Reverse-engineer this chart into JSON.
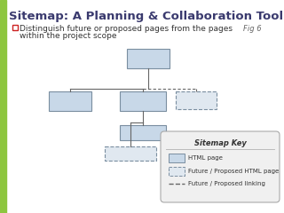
{
  "title": "Sitemap: A Planning & Collaboration Tool:",
  "title_fontsize": 9.5,
  "title_color": "#3a3a6e",
  "bullet_text1": "Distinguish future or proposed pages from the pages",
  "bullet_text2": "within the project scope",
  "bullet_fontsize": 6.5,
  "fig6_text": "Fig 6",
  "fig6_fontsize": 6,
  "fig6_color": "#666666",
  "bg_color": "#ffffff",
  "left_bar_color": "#8dc63f",
  "solid_box_fill": "#c8d8e8",
  "solid_box_edge": "#7a8ea0",
  "dashed_box_fill": "#e0e8f0",
  "dashed_box_edge": "#7a8ea0",
  "line_color": "#666666",
  "key_bg": "#f0f0f0",
  "key_border": "#aaaaaa",
  "key_title": "Sitemap Key",
  "key_title_fontsize": 6,
  "key_label1": "HTML page",
  "key_label2": "Future / Proposed HTML page",
  "key_label3": "Future / Proposed linking",
  "key_fontsize": 5,
  "checkbox_color": "#cc2222"
}
